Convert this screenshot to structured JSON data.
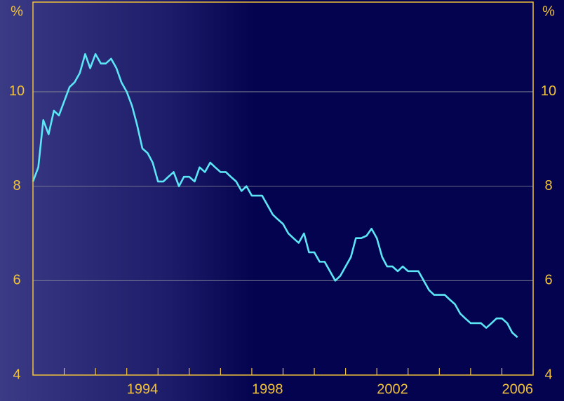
{
  "chart_data": {
    "type": "line",
    "y_unit": "%",
    "x": [
      1991.0,
      1991.17,
      1991.33,
      1991.5,
      1991.67,
      1991.83,
      1992.0,
      1992.17,
      1992.33,
      1992.5,
      1992.67,
      1992.83,
      1993.0,
      1993.17,
      1993.33,
      1993.5,
      1993.67,
      1993.83,
      1994.0,
      1994.17,
      1994.33,
      1994.5,
      1994.67,
      1994.83,
      1995.0,
      1995.17,
      1995.33,
      1995.5,
      1995.67,
      1995.83,
      1996.0,
      1996.17,
      1996.33,
      1996.5,
      1996.67,
      1996.83,
      1997.0,
      1997.17,
      1997.33,
      1997.5,
      1997.67,
      1997.83,
      1998.0,
      1998.17,
      1998.33,
      1998.5,
      1998.67,
      1998.83,
      1999.0,
      1999.17,
      1999.33,
      1999.5,
      1999.67,
      1999.83,
      2000.0,
      2000.17,
      2000.33,
      2000.5,
      2000.67,
      2000.83,
      2001.0,
      2001.17,
      2001.33,
      2001.5,
      2001.67,
      2001.83,
      2002.0,
      2002.17,
      2002.33,
      2002.5,
      2002.67,
      2002.83,
      2003.0,
      2003.17,
      2003.33,
      2003.5,
      2003.67,
      2003.83,
      2004.0,
      2004.17,
      2004.33,
      2004.5,
      2004.67,
      2004.83,
      2005.0,
      2005.17,
      2005.33,
      2005.5,
      2005.67,
      2005.83,
      2006.0,
      2006.17,
      2006.33,
      2006.5
    ],
    "series": [
      {
        "color": "#5ce6f5",
        "values": [
          8.1,
          8.4,
          9.4,
          9.1,
          9.6,
          9.5,
          9.8,
          10.1,
          10.2,
          10.4,
          10.8,
          10.5,
          10.8,
          10.6,
          10.6,
          10.7,
          10.5,
          10.2,
          10.0,
          9.7,
          9.3,
          8.8,
          8.7,
          8.5,
          8.1,
          8.1,
          8.2,
          8.3,
          8.0,
          8.2,
          8.2,
          8.1,
          8.4,
          8.3,
          8.5,
          8.4,
          8.3,
          8.3,
          8.2,
          8.1,
          7.9,
          8.0,
          7.8,
          7.8,
          7.8,
          7.6,
          7.4,
          7.3,
          7.2,
          7.0,
          6.9,
          6.8,
          7.0,
          6.6,
          6.6,
          6.4,
          6.4,
          6.2,
          6.0,
          6.1,
          6.3,
          6.5,
          6.9,
          6.9,
          6.95,
          7.1,
          6.9,
          6.5,
          6.3,
          6.3,
          6.2,
          6.3,
          6.2,
          6.2,
          6.2,
          6.0,
          5.8,
          5.7,
          5.7,
          5.7,
          5.6,
          5.5,
          5.3,
          5.2,
          5.1,
          5.1,
          5.1,
          5.0,
          5.1,
          5.2,
          5.2,
          5.1,
          4.9,
          4.8
        ]
      }
    ],
    "xlim": [
      1991,
      2007
    ],
    "xticks": [
      {
        "value": 1994.5,
        "label": "1994"
      },
      {
        "value": 1998.5,
        "label": "1998"
      },
      {
        "value": 2002.5,
        "label": "2002"
      },
      {
        "value": 2006.5,
        "label": "2006"
      }
    ],
    "xminorticks": [
      1991,
      1992,
      1993,
      1994,
      1995,
      1996,
      1997,
      1998,
      1999,
      2000,
      2001,
      2002,
      2003,
      2004,
      2005,
      2006,
      2007
    ],
    "ylim": [
      4,
      11.9
    ],
    "yticks": [
      4,
      6,
      8,
      10
    ],
    "grid": true
  }
}
